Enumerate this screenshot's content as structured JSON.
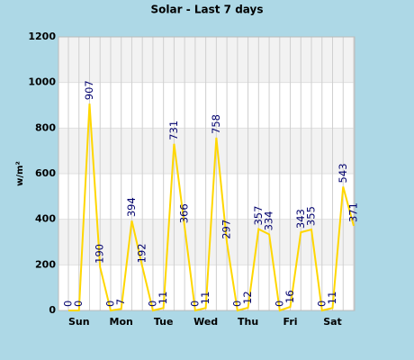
{
  "chart_data": {
    "type": "line",
    "title": "Solar - Last 7 days",
    "y_label": "w/m²",
    "categories": [
      null,
      "Sun",
      null,
      null,
      null,
      "Mon",
      null,
      null,
      null,
      "Tue",
      null,
      null,
      null,
      "Wed",
      null,
      null,
      null,
      "Thu",
      null,
      null,
      null,
      "Fri",
      null,
      null,
      null,
      "Sat",
      null,
      null
    ],
    "series": [
      {
        "name": "Solar",
        "color": "#ffd700",
        "values": [
          0,
          0,
          907,
          190,
          0,
          7,
          394,
          192,
          0,
          11,
          731,
          366,
          0,
          11,
          758,
          297,
          0,
          12,
          357,
          334,
          0,
          16,
          343,
          355,
          0,
          11,
          543,
          371
        ]
      }
    ],
    "ylim": [
      0,
      1200
    ],
    "yticks": [
      0,
      200,
      400,
      600,
      800,
      1000,
      1200
    ],
    "grid": true
  }
}
